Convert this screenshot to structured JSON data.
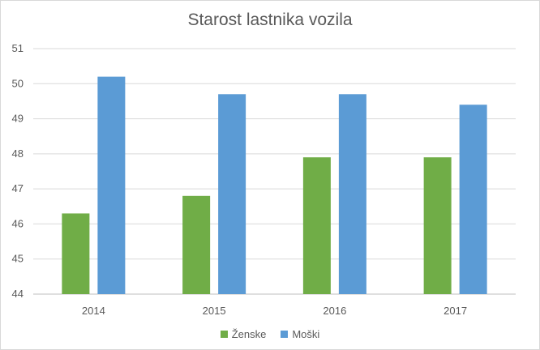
{
  "chart_data": {
    "type": "bar",
    "title": "Starost lastnika vozila",
    "categories": [
      "2014",
      "2015",
      "2016",
      "2017"
    ],
    "series": [
      {
        "name": "Ženske",
        "color": "#70ad47",
        "values": [
          46.3,
          46.8,
          47.9,
          47.9
        ]
      },
      {
        "name": "Moški",
        "color": "#5b9bd5",
        "values": [
          50.2,
          49.7,
          49.7,
          49.4
        ]
      }
    ],
    "ylim": [
      44,
      51
    ],
    "yticks": [
      "44",
      "45",
      "46",
      "47",
      "48",
      "49",
      "50",
      "51"
    ],
    "grid": true,
    "legend_position": "bottom"
  }
}
